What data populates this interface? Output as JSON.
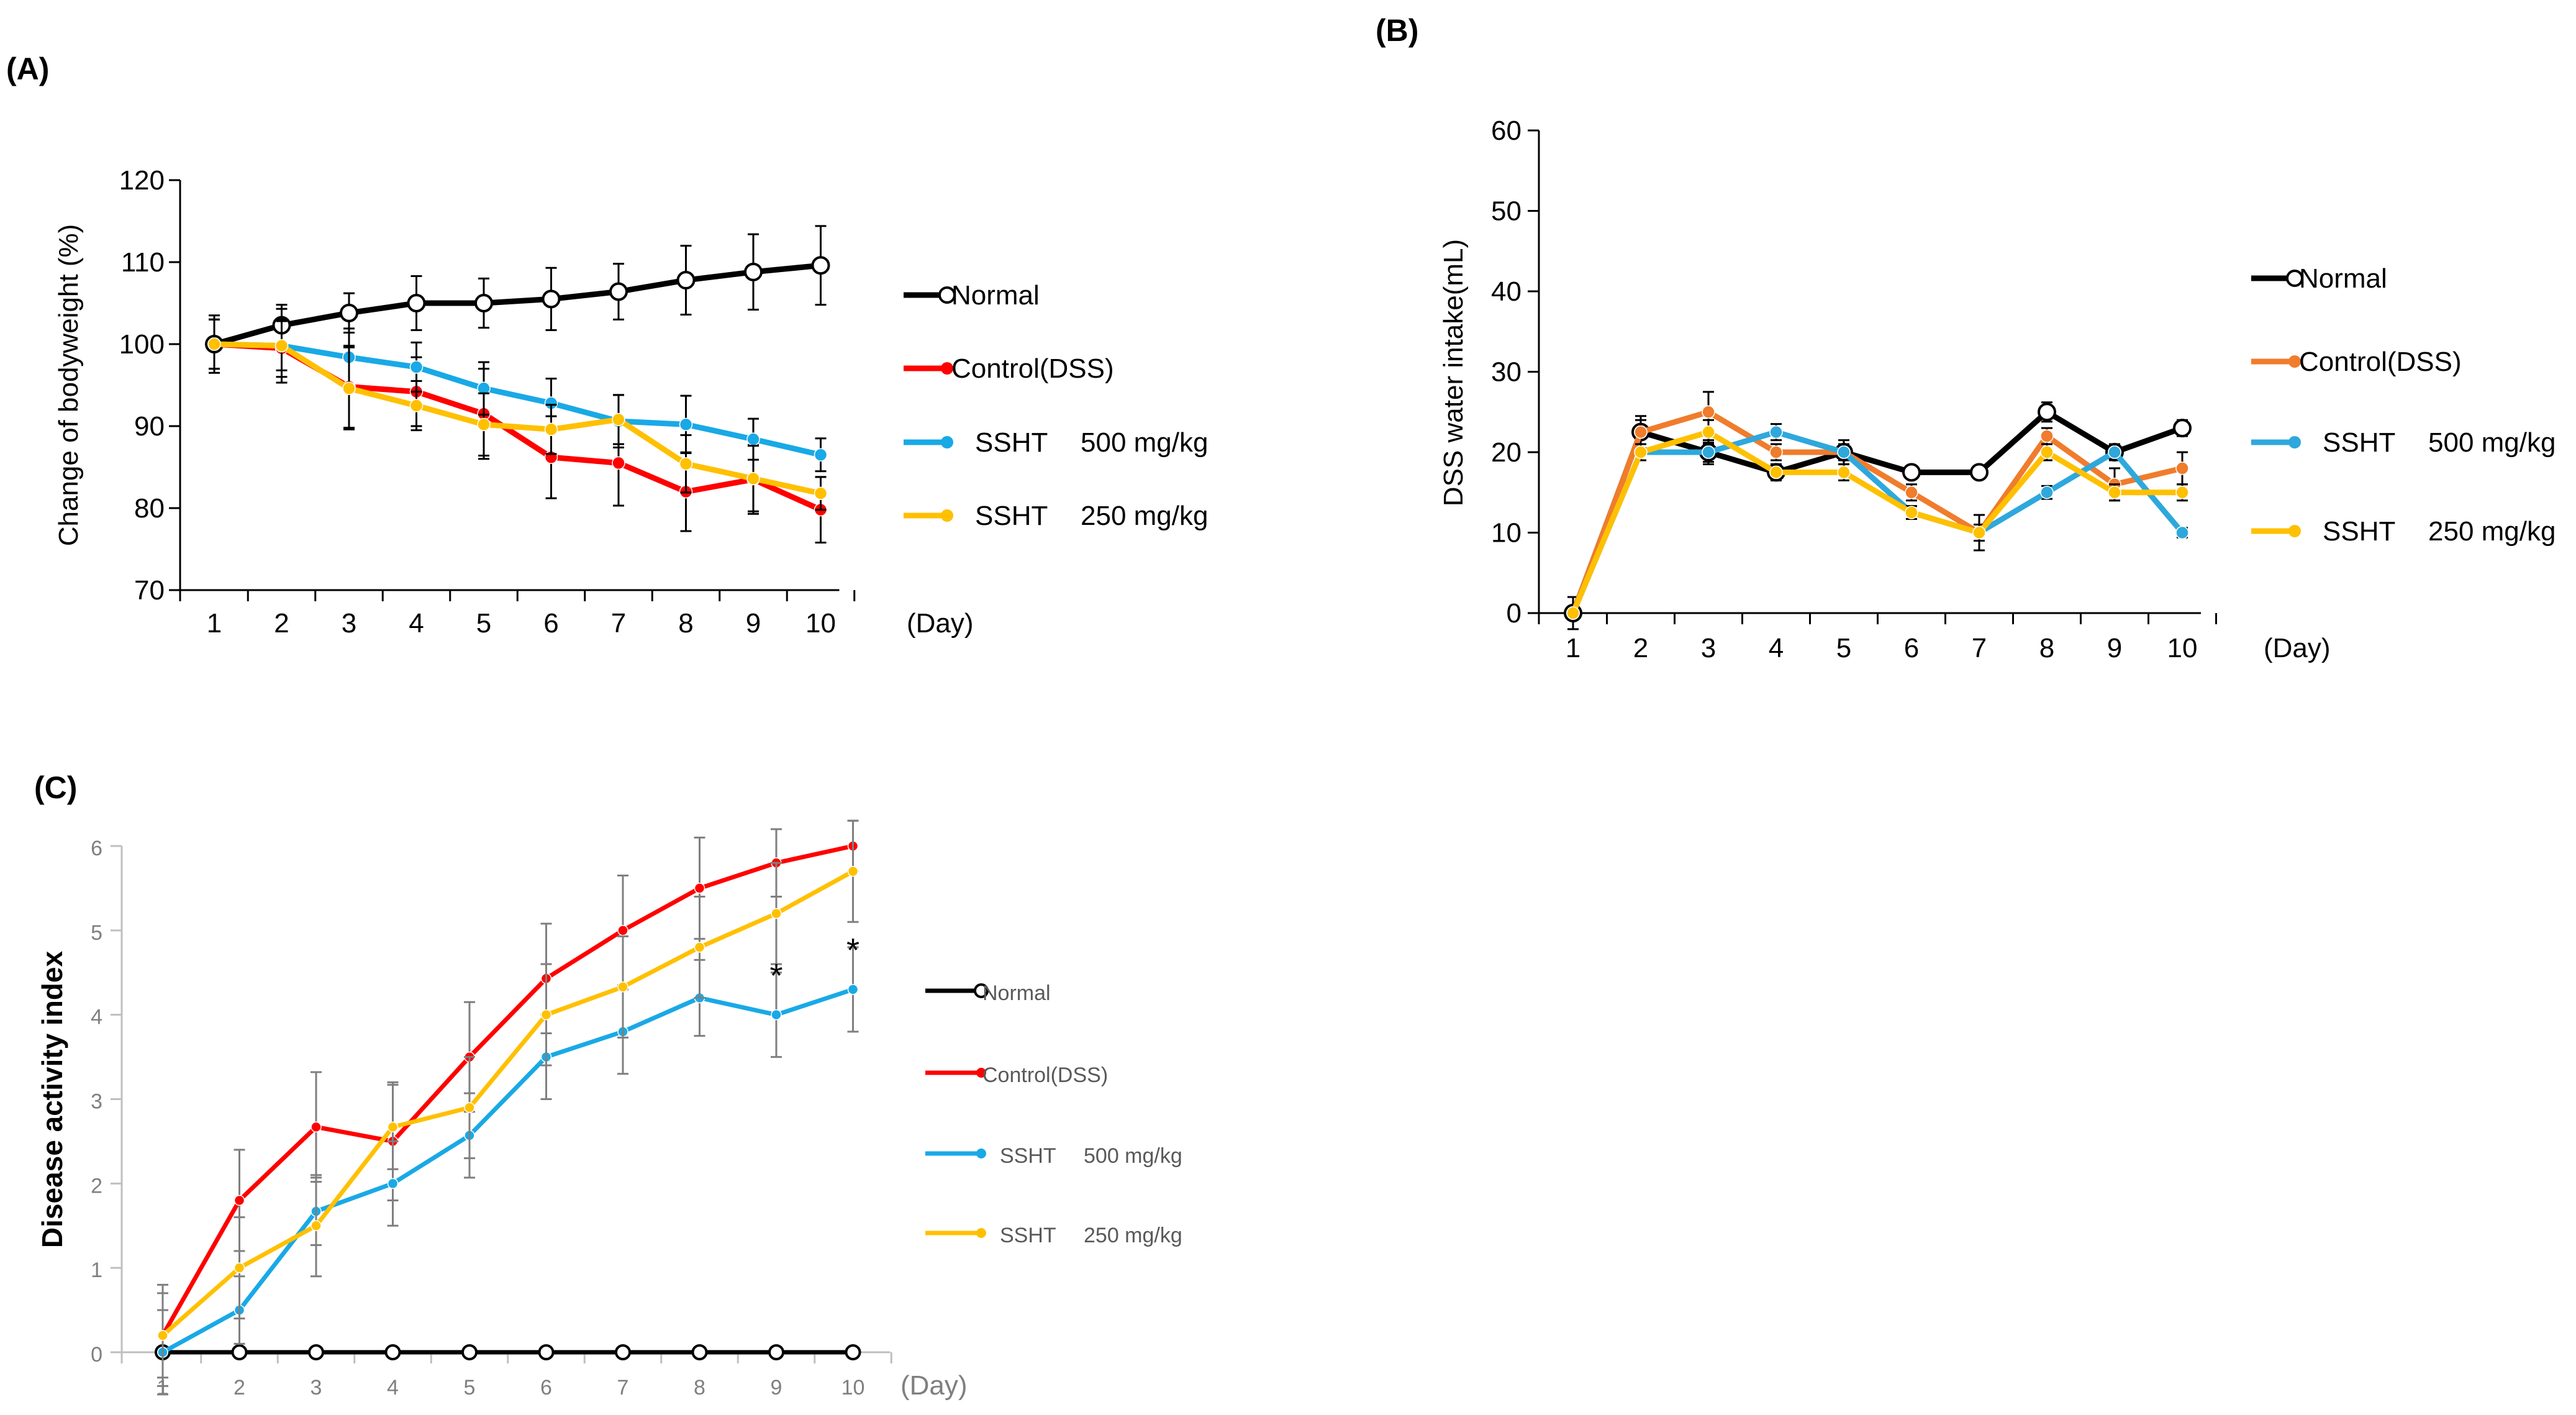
{
  "chart_data": [
    {
      "id": "A",
      "panel_label": "(A)",
      "type": "line",
      "title": "",
      "xlabel": "(Day)",
      "ylabel": "Change of bodyweight (%)",
      "categories": [
        "1",
        "2",
        "3",
        "4",
        "5",
        "6",
        "7",
        "8",
        "9",
        "10"
      ],
      "ylim": [
        70,
        120
      ],
      "yticks": [
        "70",
        "80",
        "90",
        "100",
        "110",
        "120"
      ],
      "series": [
        {
          "name": "Normal",
          "dose": "",
          "color": "#000000",
          "marker": "open-circle",
          "values": [
            100,
            102.3,
            103.8,
            105,
            105,
            105.5,
            106.4,
            107.8,
            108.8,
            109.6
          ],
          "errors": [
            3.5,
            2.5,
            2.4,
            3.3,
            3,
            3.8,
            3.4,
            4.2,
            4.6,
            4.8
          ]
        },
        {
          "name": "Control(DSS)",
          "dose": "",
          "color": "#ff0000",
          "marker": "dot",
          "values": [
            100,
            99.5,
            94.8,
            94.2,
            91.5,
            86.2,
            85.5,
            82,
            83.5,
            79.8
          ],
          "errors": [
            3,
            3.5,
            5,
            4.2,
            5.5,
            5,
            5.2,
            4.8,
            4.2,
            4
          ]
        },
        {
          "name": "SSHT",
          "dose": "500 mg/kg",
          "color": "#19a9e6",
          "marker": "dot",
          "values": [
            100,
            99.8,
            98.4,
            97.2,
            94.6,
            92.8,
            90.6,
            90.2,
            88.4,
            86.5
          ],
          "errors": [
            3,
            3,
            3.5,
            3,
            3.2,
            3,
            3.2,
            3.5,
            2.5,
            2
          ]
        },
        {
          "name": "SSHT",
          "dose": "250 mg/kg",
          "color": "#ffc000",
          "marker": "dot",
          "values": [
            100,
            99.8,
            94.6,
            92.5,
            90.2,
            89.6,
            90.8,
            85.4,
            83.6,
            81.8
          ],
          "errors": [
            3,
            4.5,
            5,
            3,
            3.8,
            3,
            3,
            3.5,
            4,
            2
          ]
        }
      ]
    },
    {
      "id": "B",
      "panel_label": "(B)",
      "type": "line",
      "title": "",
      "xlabel": "(Day)",
      "ylabel": "DSS water intake(mL)",
      "categories": [
        "1",
        "2",
        "3",
        "4",
        "5",
        "6",
        "7",
        "8",
        "9",
        "10"
      ],
      "ylim": [
        0,
        60
      ],
      "yticks": [
        "0",
        "10",
        "20",
        "30",
        "40",
        "50",
        "60"
      ],
      "series": [
        {
          "name": "Normal",
          "dose": "",
          "color": "#000000",
          "marker": "open-circle",
          "values": [
            0,
            22.5,
            20,
            17.5,
            20,
            17.5,
            17.5,
            25,
            20,
            23
          ],
          "errors": [
            2,
            2,
            1.5,
            1,
            1,
            0.8,
            0.8,
            1.2,
            1,
            1
          ]
        },
        {
          "name": "Control(DSS)",
          "dose": "",
          "color": "#f07c2c",
          "marker": "dot",
          "values": [
            0,
            22.5,
            25,
            20,
            20,
            15,
            10,
            22,
            16,
            18
          ],
          "errors": [
            0,
            1.5,
            2.5,
            1,
            1,
            1,
            1,
            1,
            2,
            2
          ]
        },
        {
          "name": "SSHT",
          "dose": "500 mg/kg",
          "color": "#2ea8dc",
          "marker": "dot",
          "values": [
            0,
            20,
            20,
            22.5,
            20,
            12.5,
            10,
            15,
            20,
            10
          ],
          "errors": [
            0,
            1,
            1.2,
            1,
            1.5,
            0.8,
            2.2,
            0.8,
            1,
            0.6
          ]
        },
        {
          "name": "SSHT",
          "dose": "250 mg/kg",
          "color": "#ffc000",
          "marker": "dot",
          "values": [
            0,
            20,
            22.5,
            17.5,
            17.5,
            12.5,
            10,
            20,
            15,
            15
          ],
          "errors": [
            0,
            1,
            1.5,
            1,
            1,
            0.8,
            1,
            1,
            1,
            1
          ]
        }
      ]
    },
    {
      "id": "C",
      "panel_label": "(C)",
      "type": "line",
      "title": "",
      "xlabel": "(Day)",
      "ylabel": "Disease  activity  index",
      "categories": [
        "1",
        "2",
        "3",
        "4",
        "5",
        "6",
        "7",
        "8",
        "9",
        "10"
      ],
      "ylim": [
        0,
        6
      ],
      "yticks": [
        "0",
        "1",
        "2",
        "3",
        "4",
        "5",
        "6"
      ],
      "annotations": [
        {
          "text": "*",
          "category": "9",
          "y": 4.55
        },
        {
          "text": "*",
          "category": "10",
          "y": 4.85
        }
      ],
      "series": [
        {
          "name": "Normal",
          "dose": "",
          "color": "#000000",
          "marker": "open-circle",
          "values": [
            0,
            0,
            0,
            0,
            0,
            0,
            0,
            0,
            0,
            0
          ],
          "errors": [
            0,
            0,
            0,
            0,
            0,
            0,
            0,
            0,
            0,
            0
          ]
        },
        {
          "name": "Control(DSS)",
          "dose": "",
          "color": "#ff0000",
          "marker": "dot",
          "values": [
            0.2,
            1.8,
            2.67,
            2.5,
            3.5,
            4.43,
            5,
            5.5,
            5.8,
            6
          ],
          "errors": [
            0.6,
            0.6,
            0.65,
            0.7,
            0.65,
            0.65,
            0.65,
            0.6,
            0.4,
            0.3
          ]
        },
        {
          "name": "SSHT",
          "dose": "500 mg/kg",
          "color": "#19a9e6",
          "marker": "dot",
          "values": [
            0,
            0.5,
            1.67,
            2,
            2.57,
            3.5,
            3.8,
            4.2,
            4,
            4.3
          ],
          "errors": [
            0.5,
            0.4,
            0.4,
            0.5,
            0.5,
            0.5,
            0.5,
            0.45,
            0.5,
            0.5
          ]
        },
        {
          "name": "SSHT",
          "dose": "250 mg/kg",
          "color": "#ffc000",
          "marker": "dot",
          "values": [
            0.2,
            1,
            1.5,
            2.67,
            2.9,
            4,
            4.33,
            4.8,
            5.2,
            5.7
          ],
          "errors": [
            0.5,
            0.6,
            0.6,
            0.5,
            0.6,
            0.6,
            0.6,
            0.6,
            0.6,
            0.6
          ]
        }
      ]
    }
  ]
}
